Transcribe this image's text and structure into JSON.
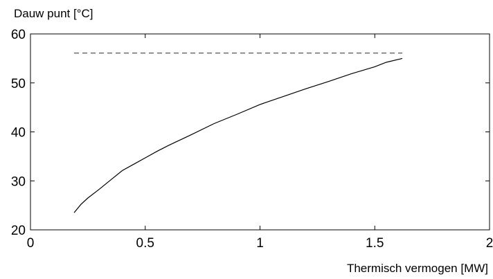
{
  "chart_data": {
    "type": "line",
    "ylabel": "Dauw punt [°C]",
    "xlabel": "Thermisch vermogen [MW]",
    "xlim": [
      0,
      2
    ],
    "ylim": [
      20,
      60
    ],
    "x_ticks": [
      "0",
      "0.5",
      "1",
      "1.5",
      "2"
    ],
    "y_ticks": [
      "20",
      "30",
      "40",
      "50",
      "60"
    ],
    "grid": false,
    "series": [
      {
        "style": "solid",
        "color": "#000000",
        "x": [
          0.19,
          0.22,
          0.25,
          0.3,
          0.35,
          0.4,
          0.45,
          0.5,
          0.55,
          0.6,
          0.7,
          0.8,
          0.9,
          1.0,
          1.1,
          1.2,
          1.3,
          1.4,
          1.5,
          1.55,
          1.62
        ],
        "y": [
          23.5,
          25.2,
          26.5,
          28.3,
          30.2,
          32.1,
          33.4,
          34.7,
          36.0,
          37.2,
          39.4,
          41.7,
          43.6,
          45.6,
          47.2,
          48.8,
          50.3,
          51.9,
          53.3,
          54.2,
          55.0
        ]
      },
      {
        "style": "dashed",
        "color": "#555555",
        "x": [
          0.19,
          1.62
        ],
        "y": [
          56.1,
          56.1
        ]
      }
    ]
  }
}
